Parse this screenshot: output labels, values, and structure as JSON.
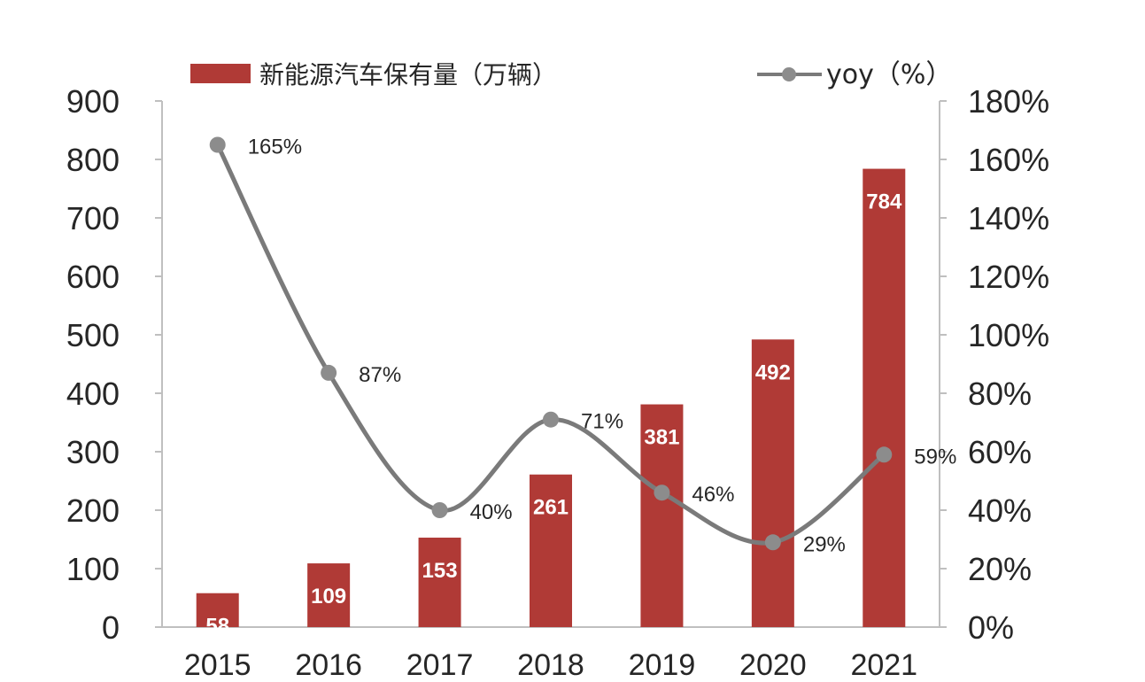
{
  "chart_data": {
    "type": "bar",
    "categories": [
      "2015",
      "2016",
      "2017",
      "2018",
      "2019",
      "2020",
      "2021"
    ],
    "series": [
      {
        "name": "新能源汽车保有量（万辆）",
        "type": "bar",
        "axis": "left",
        "color": "#b03a36",
        "values": [
          58,
          109,
          153,
          261,
          381,
          492,
          784
        ],
        "labels": [
          "58",
          "109",
          "153",
          "261",
          "381",
          "492",
          "784"
        ]
      },
      {
        "name": "yoy（%）",
        "type": "line",
        "axis": "right",
        "color": "#7a7a7a",
        "marker_color": "#8c8c8c",
        "values": [
          165,
          87,
          40,
          71,
          46,
          29,
          59
        ],
        "labels": [
          "165%",
          "87%",
          "40%",
          "71%",
          "46%",
          "29%",
          "59%"
        ]
      }
    ],
    "y_left": {
      "ylim": [
        0,
        900
      ],
      "ticks": [
        "0",
        "100",
        "200",
        "300",
        "400",
        "500",
        "600",
        "700",
        "800",
        "900"
      ]
    },
    "y_right": {
      "ylim": [
        0,
        180
      ],
      "ticks": [
        "0%",
        "20%",
        "40%",
        "60%",
        "80%",
        "100%",
        "120%",
        "140%",
        "160%",
        "180%"
      ]
    },
    "legend_position": "top",
    "grid": false,
    "colors": {
      "axis": "#bfbfbf",
      "text": "#262626"
    }
  }
}
